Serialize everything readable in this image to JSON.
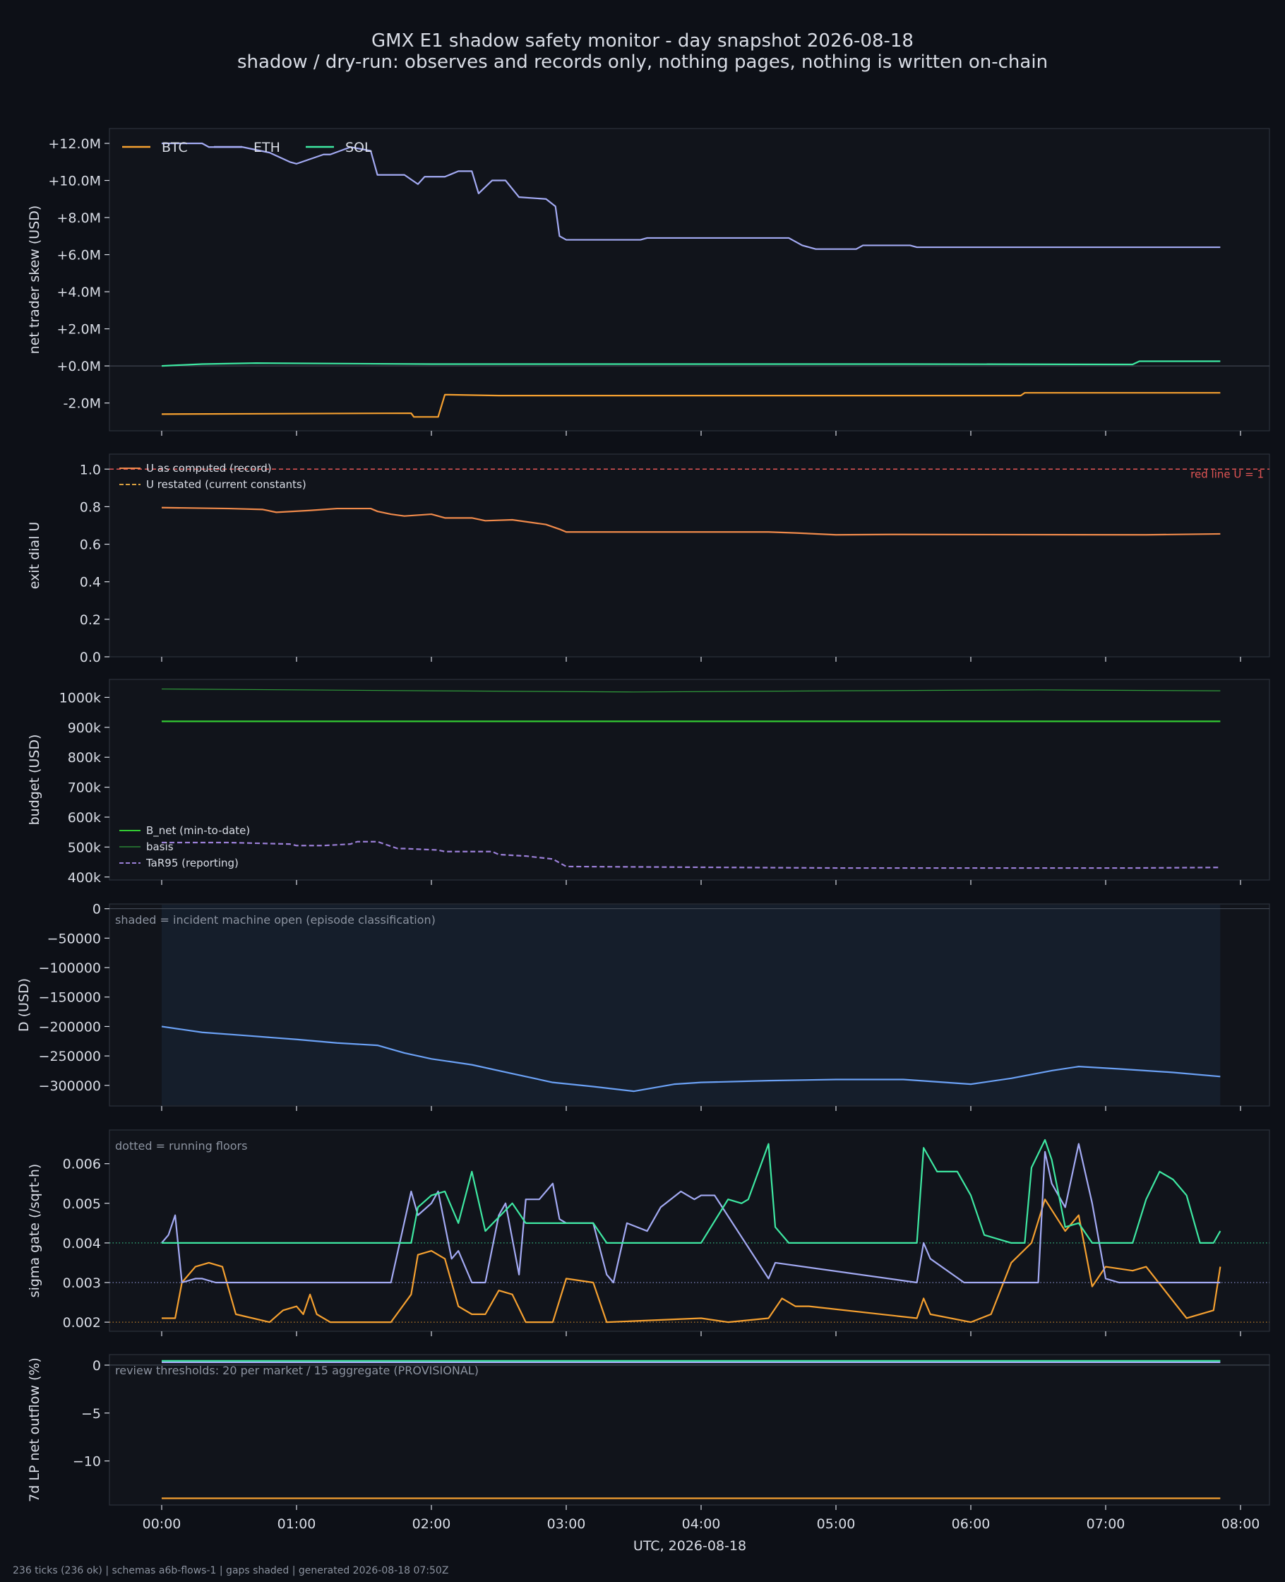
{
  "header": {
    "title": "GMX E1 shadow safety monitor - day snapshot 2026-08-18",
    "subtitle": "shadow / dry-run: observes and records only, nothing pages, nothing is written on-chain"
  },
  "footer": "236 ticks (236 ok) | schemas a6b-flows-1 | gaps shaded | generated 2026-08-18 07:50Z",
  "colors": {
    "background": "#0d1017",
    "panel": "#11141b",
    "text": "#d9dde6",
    "btc": "#f5a030",
    "eth": "#a3aaf3",
    "sol": "#3ee8a2",
    "u_computed": "#f08a4b",
    "red_line": "#e25555",
    "b_net": "#33cc33",
    "basis": "#2f9a3a",
    "tar95": "#9b7fd8",
    "d": "#6ba1f5"
  },
  "chart_data": [
    {
      "id": "skew",
      "type": "line",
      "ylabel": "net trader skew (USD)",
      "ylim": [
        -3500000,
        12800000
      ],
      "ticks": [
        -2000000,
        0,
        2000000,
        4000000,
        6000000,
        8000000,
        10000000,
        12000000
      ],
      "tick_labels": [
        "-2.0M",
        "+0.0M",
        "+2.0M",
        "+4.0M",
        "+6.0M",
        "+8.0M",
        "+10.0M",
        "+12.0M"
      ],
      "zero_line": true,
      "legend_position": "top-left",
      "series": [
        {
          "name": "BTC",
          "color": "#f5a030",
          "x": [
            0,
            1.85,
            1.87,
            2.05,
            2.1,
            2.5,
            3.5,
            5.3,
            6.37,
            6.4,
            7.85
          ],
          "y": [
            -2600000,
            -2550000,
            -2750000,
            -2750000,
            -1550000,
            -1600000,
            -1600000,
            -1600000,
            -1600000,
            -1450000,
            -1450000
          ]
        },
        {
          "name": "ETH",
          "color": "#a3aaf3",
          "x": [
            0,
            0.3,
            0.35,
            0.6,
            0.8,
            0.95,
            1.0,
            1.2,
            1.25,
            1.4,
            1.55,
            1.6,
            1.75,
            1.8,
            1.9,
            1.95,
            2.1,
            2.2,
            2.3,
            2.35,
            2.45,
            2.55,
            2.65,
            2.85,
            2.92,
            2.95,
            3.0,
            3.3,
            3.55,
            3.6,
            3.75,
            4.3,
            4.65,
            4.75,
            4.85,
            5.15,
            5.2,
            5.55,
            5.6,
            7.85
          ],
          "y": [
            12000000,
            12000000,
            11800000,
            11800000,
            11500000,
            11000000,
            10900000,
            11400000,
            11400000,
            11800000,
            11600000,
            10300000,
            10300000,
            10300000,
            9800000,
            10200000,
            10200000,
            10500000,
            10500000,
            9300000,
            10000000,
            10000000,
            9100000,
            9000000,
            8600000,
            7000000,
            6800000,
            6800000,
            6800000,
            6900000,
            6900000,
            6900000,
            6900000,
            6500000,
            6300000,
            6300000,
            6500000,
            6500000,
            6400000,
            6400000
          ]
        },
        {
          "name": "SOL",
          "color": "#3ee8a2",
          "x": [
            0,
            0.3,
            0.7,
            2.0,
            5.5,
            7.2,
            7.25,
            7.85
          ],
          "y": [
            0,
            100000,
            150000,
            100000,
            100000,
            80000,
            250000,
            250000
          ]
        }
      ]
    },
    {
      "id": "exit_dial",
      "type": "line",
      "ylabel": "exit dial U",
      "ylim": [
        0,
        1.08
      ],
      "ticks": [
        0,
        0.2,
        0.4,
        0.6,
        0.8,
        1.0
      ],
      "tick_labels": [
        "0.0",
        "0.2",
        "0.4",
        "0.6",
        "0.8",
        "1.0"
      ],
      "annotation": "red line U = 1",
      "legend_position": "top-left",
      "series": [
        {
          "name": "U as computed (record)",
          "color": "#f08a4b",
          "x": [
            0,
            0.5,
            0.75,
            0.85,
            1.1,
            1.3,
            1.55,
            1.6,
            1.7,
            1.8,
            2.0,
            2.1,
            2.3,
            2.4,
            2.6,
            2.85,
            2.95,
            3.0,
            4.5,
            4.7,
            5.0,
            5.4,
            7.3,
            7.85
          ],
          "y": [
            0.795,
            0.79,
            0.785,
            0.77,
            0.78,
            0.79,
            0.79,
            0.775,
            0.76,
            0.75,
            0.76,
            0.74,
            0.74,
            0.725,
            0.73,
            0.705,
            0.68,
            0.665,
            0.665,
            0.66,
            0.65,
            0.652,
            0.65,
            0.655
          ]
        },
        {
          "name": "U restated (current constants)",
          "color": "#d9a040",
          "dashed": true,
          "x": [],
          "y": []
        },
        {
          "name": "red line U = 1",
          "color": "#e25555",
          "dashed": true,
          "x": [
            0,
            8.5
          ],
          "y": [
            1,
            1
          ]
        }
      ]
    },
    {
      "id": "budget",
      "type": "line",
      "ylabel": "budget (USD)",
      "ylim": [
        390000,
        1060000
      ],
      "ticks": [
        400000,
        500000,
        600000,
        700000,
        800000,
        900000,
        1000000
      ],
      "tick_labels": [
        "400k",
        "500k",
        "600k",
        "700k",
        "800k",
        "900k",
        "1000k"
      ],
      "legend_position": "bottom-left",
      "series": [
        {
          "name": "B_net (min-to-date)",
          "color": "#33cc33",
          "x": [
            0,
            7.85
          ],
          "y": [
            920000,
            920000
          ]
        },
        {
          "name": "basis",
          "color": "#2f9a3a",
          "x": [
            0,
            1.0,
            2.0,
            3.5,
            5.0,
            6.5,
            7.85
          ],
          "y": [
            1028000,
            1025000,
            1022000,
            1018000,
            1022000,
            1025000,
            1022000
          ]
        },
        {
          "name": "TaR95 (reporting)",
          "color": "#9b7fd8",
          "dashed": true,
          "x": [
            0,
            0.5,
            0.95,
            1.0,
            1.2,
            1.4,
            1.45,
            1.6,
            1.75,
            1.8,
            2.05,
            2.1,
            2.45,
            2.5,
            2.7,
            2.9,
            3.0,
            5.0,
            7.2,
            7.85
          ],
          "y": [
            515000,
            515000,
            510000,
            505000,
            505000,
            510000,
            518000,
            518000,
            495000,
            495000,
            490000,
            485000,
            485000,
            475000,
            470000,
            460000,
            435000,
            430000,
            430000,
            432000
          ]
        }
      ]
    },
    {
      "id": "d_usd",
      "type": "line",
      "ylabel": "D (USD)",
      "ylim": [
        -335000,
        8000
      ],
      "ticks": [
        -300000,
        -250000,
        -200000,
        -150000,
        -100000,
        -50000,
        0
      ],
      "tick_labels": [
        "−300000",
        "−250000",
        "−200000",
        "−150000",
        "−100000",
        "−50000",
        "0"
      ],
      "note": "shaded = incident machine open (episode classification)",
      "shaded_range": [
        0,
        7.85
      ],
      "zero_line": true,
      "series": [
        {
          "name": "D",
          "color": "#6ba1f5",
          "x": [
            0,
            0.3,
            0.6,
            1.0,
            1.3,
            1.6,
            1.8,
            2.0,
            2.3,
            2.6,
            2.9,
            3.2,
            3.5,
            3.8,
            4.0,
            4.5,
            5.0,
            5.5,
            6.0,
            6.3,
            6.6,
            6.8,
            7.1,
            7.5,
            7.85
          ],
          "y": [
            -200000,
            -210000,
            -215000,
            -222000,
            -228000,
            -232000,
            -245000,
            -255000,
            -265000,
            -280000,
            -295000,
            -302000,
            -310000,
            -298000,
            -295000,
            -292000,
            -290000,
            -290000,
            -298000,
            -288000,
            -275000,
            -268000,
            -272000,
            -278000,
            -285000
          ]
        }
      ]
    },
    {
      "id": "sigma",
      "type": "line",
      "ylabel": "sigma gate (/sqrt-h)",
      "ylim": [
        0.00177,
        0.00685
      ],
      "ticks": [
        0.002,
        0.003,
        0.004,
        0.005,
        0.006
      ],
      "tick_labels": [
        "0.002",
        "0.003",
        "0.004",
        "0.005",
        "0.006"
      ],
      "note": "dotted = running floors",
      "floors": [
        {
          "color": "#3ee8a2",
          "y": 0.004
        },
        {
          "color": "#a3aaf3",
          "y": 0.003
        },
        {
          "color": "#f5a030",
          "y": 0.002
        }
      ],
      "series": [
        {
          "name": "BTC",
          "color": "#f5a030",
          "x": [
            0,
            0.1,
            0.15,
            0.25,
            0.35,
            0.45,
            0.55,
            0.8,
            0.9,
            1.0,
            1.05,
            1.1,
            1.15,
            1.25,
            1.7,
            1.85,
            1.9,
            2.0,
            2.1,
            2.2,
            2.3,
            2.4,
            2.5,
            2.6,
            2.7,
            2.8,
            2.9,
            3.0,
            3.2,
            3.3,
            4.0,
            4.2,
            4.5,
            4.6,
            4.7,
            4.8,
            5.6,
            5.65,
            5.7,
            6.0,
            6.15,
            6.3,
            6.45,
            6.55,
            6.7,
            6.8,
            6.9,
            7.0,
            7.2,
            7.3,
            7.6,
            7.8,
            7.85
          ],
          "y": [
            0.0021,
            0.0021,
            0.003,
            0.0034,
            0.0035,
            0.0034,
            0.0022,
            0.002,
            0.0023,
            0.0024,
            0.0022,
            0.0027,
            0.0022,
            0.002,
            0.002,
            0.0027,
            0.0037,
            0.0038,
            0.0036,
            0.0024,
            0.0022,
            0.0022,
            0.0028,
            0.0027,
            0.002,
            0.002,
            0.002,
            0.0031,
            0.003,
            0.002,
            0.0021,
            0.002,
            0.0021,
            0.0026,
            0.0024,
            0.0024,
            0.0021,
            0.0026,
            0.0022,
            0.002,
            0.0022,
            0.0035,
            0.004,
            0.0051,
            0.0043,
            0.0047,
            0.0029,
            0.0034,
            0.0033,
            0.0034,
            0.0021,
            0.0023,
            0.0034
          ]
        },
        {
          "name": "ETH",
          "color": "#a3aaf3",
          "x": [
            0,
            0.05,
            0.1,
            0.15,
            0.25,
            0.3,
            0.4,
            1.7,
            1.85,
            1.9,
            2.0,
            2.05,
            2.15,
            2.2,
            2.3,
            2.4,
            2.5,
            2.55,
            2.65,
            2.7,
            2.8,
            2.9,
            2.95,
            3.0,
            3.2,
            3.3,
            3.35,
            3.45,
            3.6,
            3.7,
            3.85,
            3.95,
            4.0,
            4.1,
            4.5,
            4.55,
            5.6,
            5.65,
            5.7,
            5.95,
            6.5,
            6.55,
            6.6,
            6.7,
            6.8,
            6.9,
            7.0,
            7.1,
            7.85
          ],
          "y": [
            0.004,
            0.0042,
            0.0047,
            0.003,
            0.0031,
            0.0031,
            0.003,
            0.003,
            0.0053,
            0.0047,
            0.005,
            0.0053,
            0.0036,
            0.0038,
            0.003,
            0.003,
            0.0047,
            0.005,
            0.0032,
            0.0051,
            0.0051,
            0.0055,
            0.0046,
            0.0045,
            0.0045,
            0.0032,
            0.003,
            0.0045,
            0.0043,
            0.0049,
            0.0053,
            0.0051,
            0.0052,
            0.0052,
            0.0031,
            0.0035,
            0.003,
            0.004,
            0.0036,
            0.003,
            0.003,
            0.0063,
            0.0055,
            0.0049,
            0.0065,
            0.005,
            0.0031,
            0.003,
            0.003
          ]
        },
        {
          "name": "SOL",
          "color": "#3ee8a2",
          "x": [
            0,
            1.85,
            1.9,
            2.0,
            2.1,
            2.2,
            2.3,
            2.4,
            2.6,
            2.7,
            2.9,
            3.0,
            3.2,
            3.3,
            4.0,
            4.2,
            4.3,
            4.35,
            4.5,
            4.55,
            4.65,
            4.7,
            5.6,
            5.65,
            5.75,
            5.9,
            6.0,
            6.1,
            6.2,
            6.3,
            6.4,
            6.45,
            6.55,
            6.6,
            6.7,
            6.8,
            6.9,
            7.0,
            7.2,
            7.3,
            7.4,
            7.5,
            7.6,
            7.7,
            7.8,
            7.85
          ],
          "y": [
            0.004,
            0.004,
            0.0049,
            0.0052,
            0.0053,
            0.0045,
            0.0058,
            0.0043,
            0.005,
            0.0045,
            0.0045,
            0.0045,
            0.0045,
            0.004,
            0.004,
            0.0051,
            0.005,
            0.0051,
            0.0065,
            0.0044,
            0.004,
            0.004,
            0.004,
            0.0064,
            0.0058,
            0.0058,
            0.0052,
            0.0042,
            0.0041,
            0.004,
            0.004,
            0.0059,
            0.0066,
            0.0061,
            0.0044,
            0.0045,
            0.004,
            0.004,
            0.004,
            0.0051,
            0.0058,
            0.0056,
            0.0052,
            0.004,
            0.004,
            0.0043
          ]
        }
      ]
    },
    {
      "id": "lp_outflow",
      "type": "line",
      "ylabel": "7d LP net outflow (%)",
      "ylim": [
        -14.6,
        1.1
      ],
      "ticks": [
        -10,
        -5,
        0
      ],
      "tick_labels": [
        "−10",
        "−5",
        "0"
      ],
      "note": "review thresholds: 20 per market / 15 aggregate (PROVISIONAL)",
      "zero_line": true,
      "xlabel": "UTC, 2026-08-18",
      "x_ticks": [
        0,
        1,
        2,
        3,
        4,
        5,
        6,
        7,
        8
      ],
      "x_tick_labels": [
        "00:00",
        "01:00",
        "02:00",
        "03:00",
        "04:00",
        "05:00",
        "06:00",
        "07:00",
        "08:00"
      ],
      "series": [
        {
          "name": "BTC",
          "color": "#f5a030",
          "x": [
            0,
            7.85
          ],
          "y": [
            -13.9,
            -13.9
          ]
        },
        {
          "name": "ETH",
          "color": "#a3aaf3",
          "x": [
            0,
            7.85
          ],
          "y": [
            0.3,
            0.3
          ]
        },
        {
          "name": "SOL",
          "color": "#3ee8a2",
          "x": [
            0,
            7.85
          ],
          "y": [
            0.45,
            0.45
          ]
        }
      ]
    }
  ]
}
